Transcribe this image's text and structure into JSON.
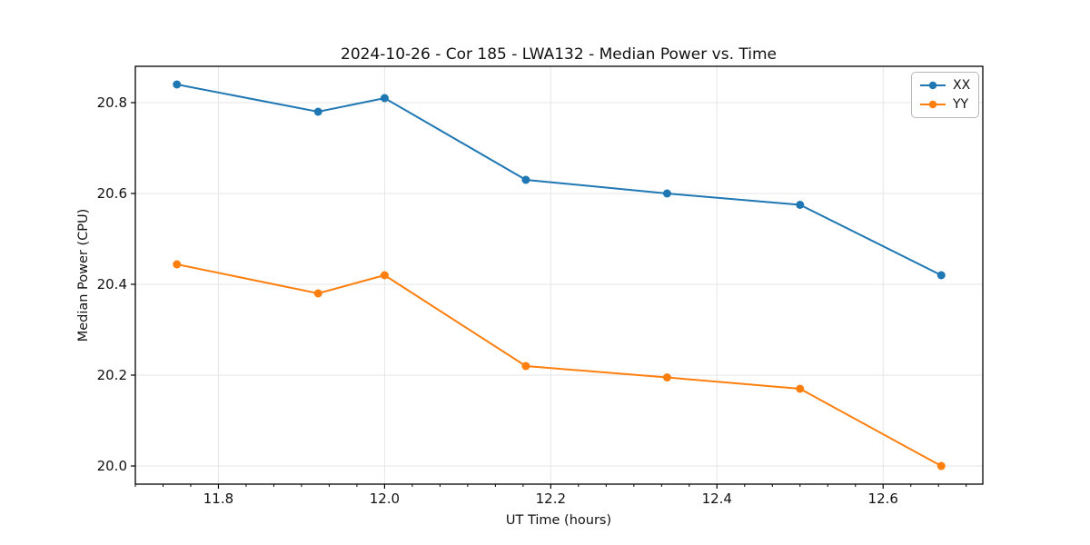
{
  "chart_data": {
    "type": "line",
    "title": "2024-10-26 - Cor 185 - LWA132 - Median Power vs. Time",
    "xlabel": "UT Time (hours)",
    "ylabel": "Median Power (CPU)",
    "x": [
      11.75,
      11.92,
      12.0,
      12.17,
      12.34,
      12.5,
      12.67
    ],
    "series": [
      {
        "name": "XX",
        "color": "#1f77b4",
        "values": [
          20.84,
          20.78,
          20.81,
          20.63,
          20.6,
          20.575,
          20.42
        ]
      },
      {
        "name": "YY",
        "color": "#ff7f0e",
        "values": [
          20.444,
          20.38,
          20.42,
          20.22,
          20.195,
          20.17,
          20.0
        ]
      }
    ],
    "xlim": [
      11.7,
      12.72
    ],
    "ylim": [
      19.96,
      20.88
    ],
    "x_ticks": [
      11.8,
      12.0,
      12.2,
      12.4,
      12.6
    ],
    "x_minor_per_major": 6,
    "y_ticks": [
      20.0,
      20.2,
      20.4,
      20.6,
      20.8
    ],
    "grid": true,
    "grid_color": "#e6e6e6",
    "spine_color": "#000000",
    "legend_position": "top-right",
    "legend_entries": [
      "XX",
      "YY"
    ]
  }
}
